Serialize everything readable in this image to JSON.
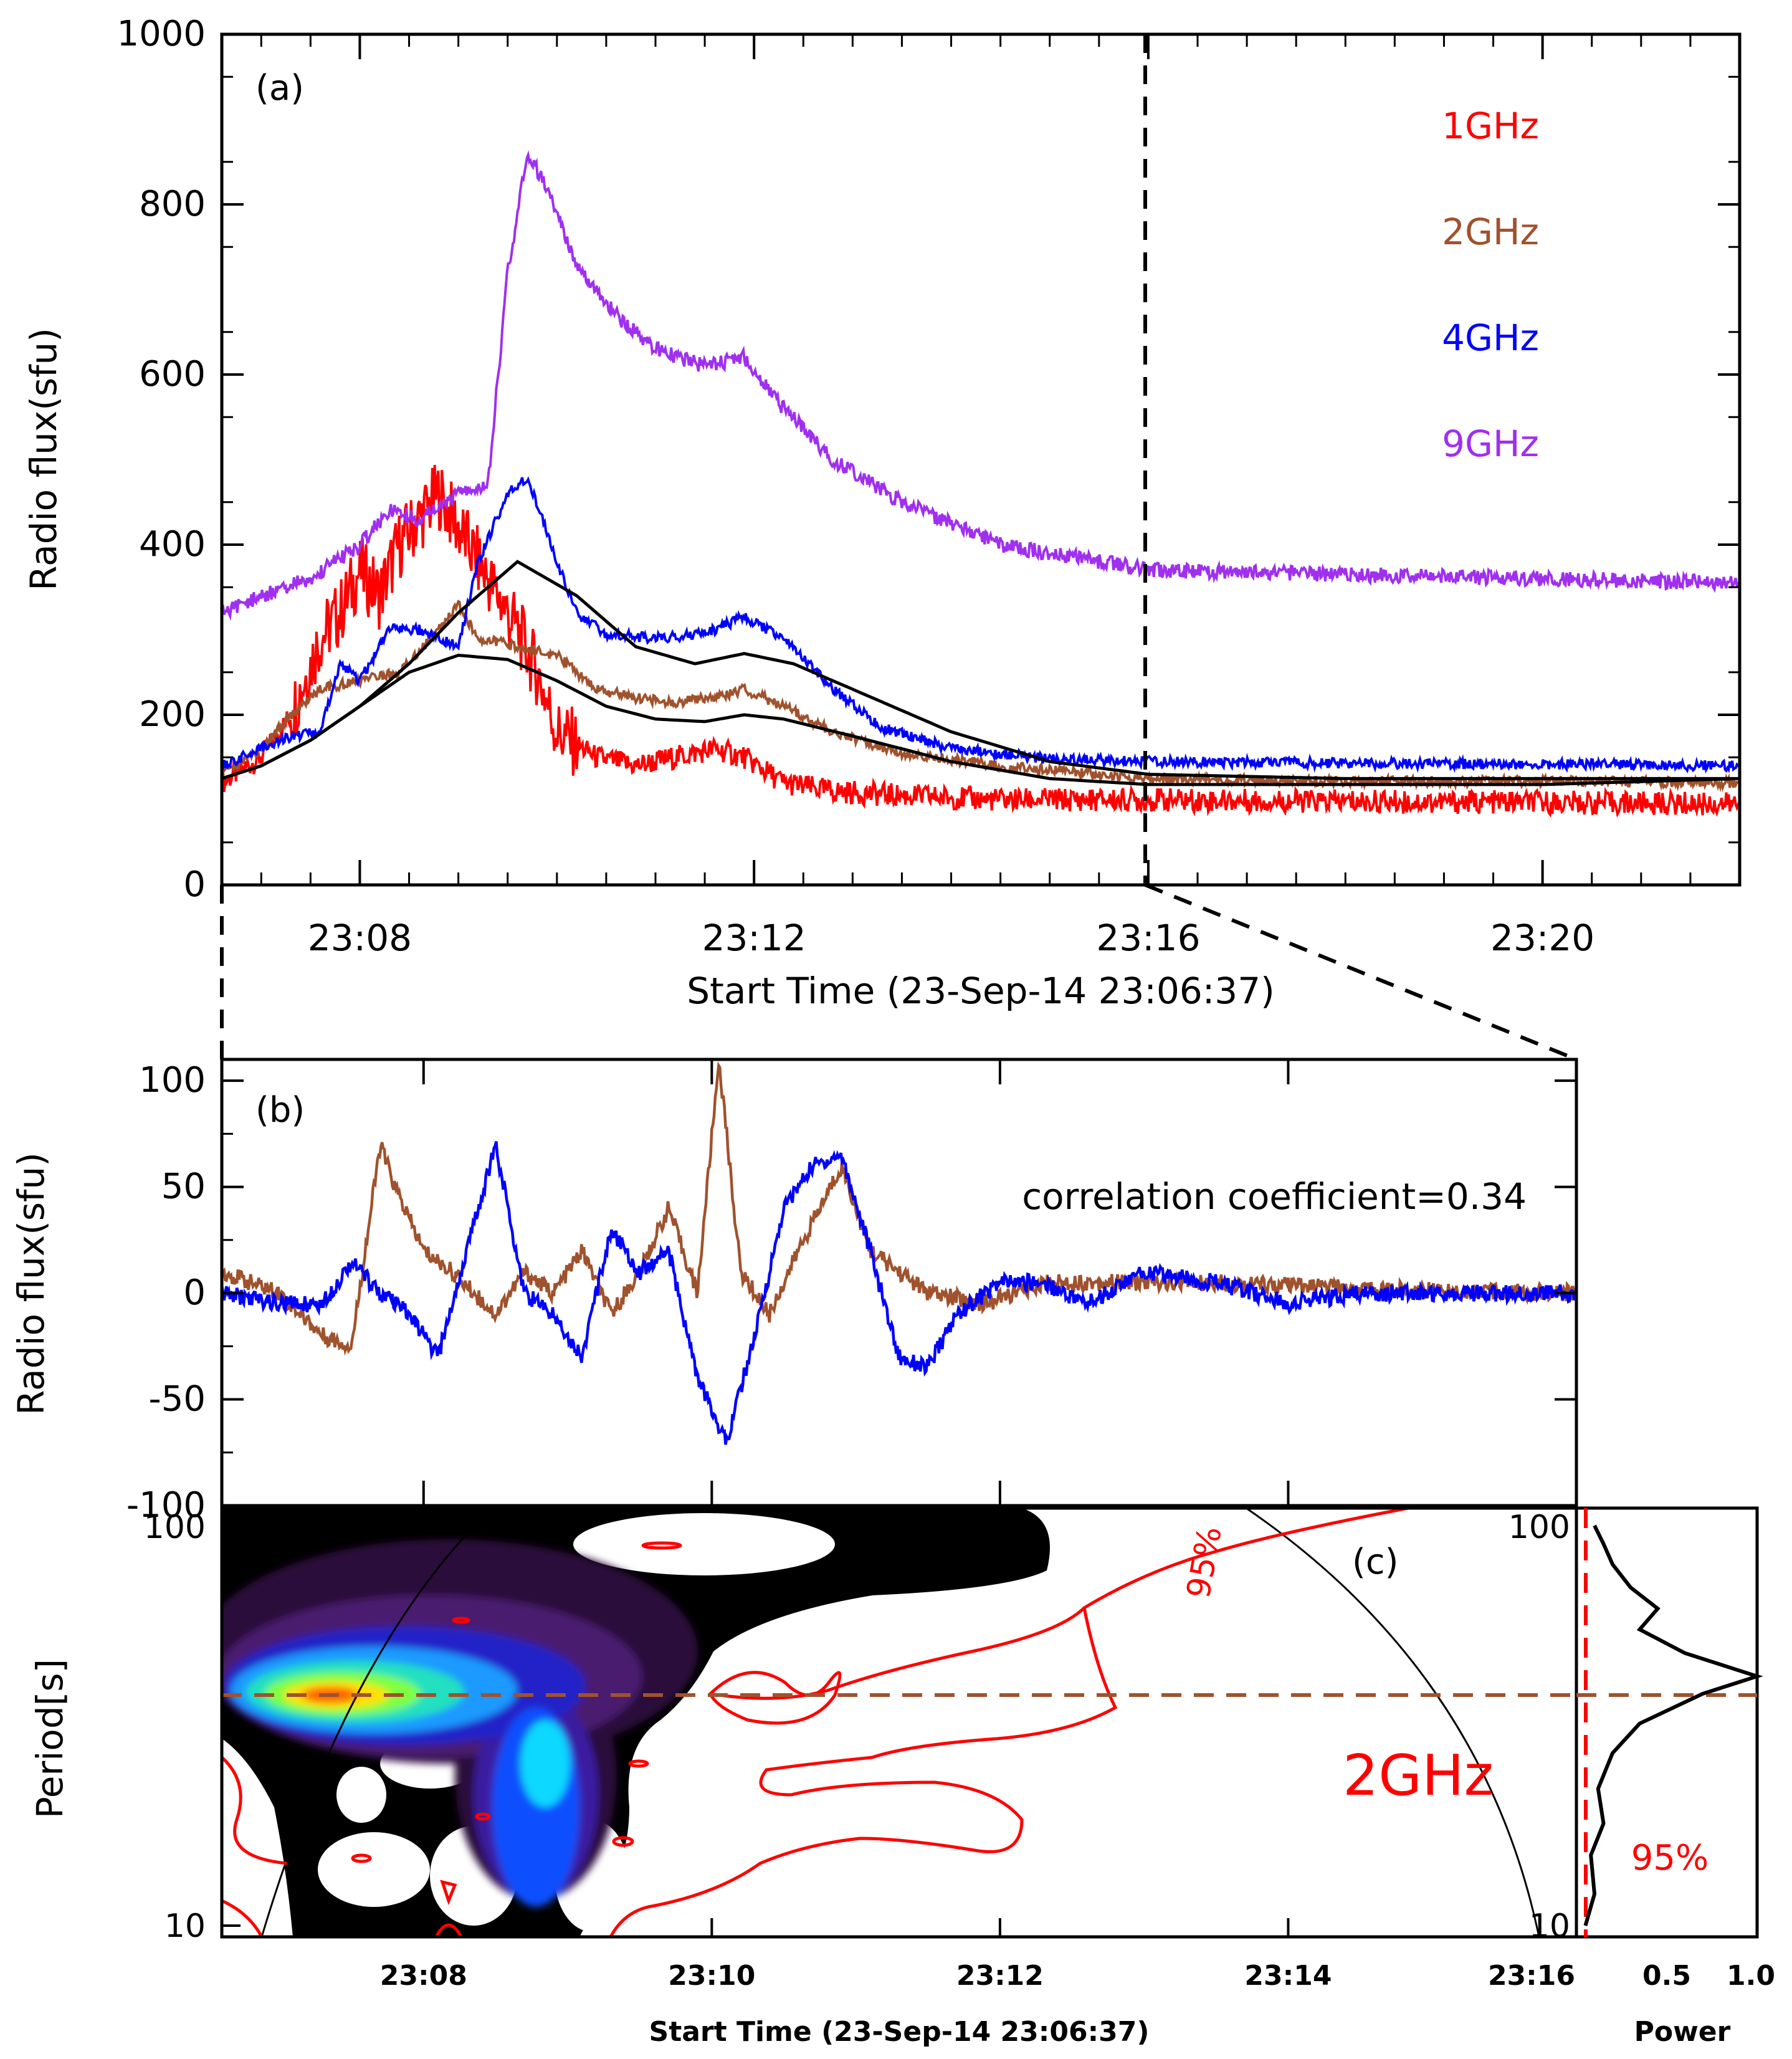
{
  "chart_data": [
    {
      "panel": "(a)",
      "type": "line",
      "title": "",
      "xlabel": "Start Time (23-Sep-14 23:06:37)",
      "ylabel": "Radio flux(sfu)",
      "xlim_minutes_after_2306": [
        0.6,
        16.0
      ],
      "ylim": [
        0,
        1000
      ],
      "yticks": [
        0,
        200,
        400,
        600,
        800,
        1000
      ],
      "xtick_labels": [
        "23:08",
        "23:12",
        "23:16",
        "23:20"
      ],
      "xtick_minutes": [
        2,
        6,
        10,
        14
      ],
      "marker_line_label": "23:16",
      "legend_placement": "top-right",
      "series": [
        {
          "name": "1GHz",
          "color": "#ff0000",
          "x": [
            0.6,
            1.0,
            1.3,
            1.6,
            1.8,
            2.0,
            2.2,
            2.4,
            2.6,
            2.8,
            3.0,
            3.2,
            3.4,
            3.6,
            3.8,
            4.0,
            4.4,
            4.8,
            5.2,
            5.6,
            5.9,
            6.3,
            6.8,
            7.5,
            8.5,
            10,
            12,
            14,
            16
          ],
          "values": [
            120,
            150,
            200,
            290,
            320,
            370,
            340,
            400,
            430,
            460,
            420,
            380,
            340,
            300,
            250,
            180,
            150,
            140,
            150,
            160,
            150,
            120,
            110,
            105,
            100,
            100,
            98,
            97,
            95
          ]
        },
        {
          "name": "2GHz",
          "color": "#a0522d",
          "x": [
            0.6,
            1.0,
            1.3,
            1.6,
            2.0,
            2.4,
            2.8,
            3.0,
            3.2,
            3.6,
            4.0,
            4.4,
            4.8,
            5.2,
            5.6,
            5.9,
            6.3,
            6.8,
            7.5,
            8.5,
            10,
            12,
            14,
            16
          ],
          "values": [
            130,
            160,
            200,
            230,
            240,
            250,
            300,
            330,
            290,
            280,
            270,
            230,
            220,
            215,
            220,
            230,
            210,
            180,
            155,
            140,
            125,
            122,
            122,
            120
          ]
        },
        {
          "name": "4GHz",
          "color": "#0000ff",
          "x": [
            0.6,
            1.0,
            1.3,
            1.6,
            1.8,
            2.0,
            2.3,
            2.6,
            3.0,
            3.2,
            3.5,
            3.7,
            4.0,
            4.2,
            4.5,
            5.0,
            5.5,
            5.9,
            6.3,
            6.8,
            7.3,
            8.0,
            9.0,
            10,
            12,
            14,
            16
          ],
          "values": [
            140,
            160,
            175,
            180,
            260,
            240,
            300,
            300,
            280,
            380,
            460,
            480,
            380,
            320,
            295,
            290,
            295,
            315,
            290,
            230,
            185,
            160,
            148,
            145,
            143,
            142,
            140
          ]
        },
        {
          "name": "9GHz",
          "color": "#a02ff0",
          "x": [
            0.6,
            1.0,
            1.5,
            2.0,
            2.3,
            2.6,
            3.0,
            3.3,
            3.5,
            3.7,
            3.9,
            4.2,
            4.6,
            5.0,
            5.5,
            5.9,
            6.3,
            6.8,
            7.5,
            8.5,
            9.5,
            10,
            12,
            14,
            16
          ],
          "values": [
            320,
            340,
            360,
            400,
            440,
            430,
            460,
            470,
            720,
            860,
            820,
            730,
            670,
            630,
            610,
            620,
            560,
            500,
            450,
            400,
            380,
            370,
            365,
            360,
            355
          ]
        },
        {
          "name": "smooth-1",
          "color": "#000000",
          "x": [
            0.6,
            1.0,
            1.5,
            2.0,
            2.5,
            3.0,
            3.6,
            4.2,
            4.8,
            5.4,
            5.9,
            6.4,
            7.0,
            8.0,
            9.0,
            10,
            12,
            14,
            16
          ],
          "values": [
            125,
            140,
            170,
            210,
            260,
            320,
            380,
            340,
            280,
            260,
            272,
            260,
            230,
            180,
            145,
            130,
            125,
            125,
            125
          ]
        },
        {
          "name": "smooth-2",
          "color": "#000000",
          "x": [
            0.6,
            1.0,
            1.5,
            2.0,
            2.5,
            3.0,
            3.5,
            4.0,
            4.5,
            5.0,
            5.5,
            5.9,
            6.3,
            7.0,
            8.0,
            9.0,
            10,
            12,
            14,
            16
          ],
          "values": [
            125,
            140,
            170,
            210,
            250,
            270,
            265,
            240,
            210,
            195,
            192,
            200,
            195,
            175,
            145,
            125,
            118,
            118,
            118,
            125
          ]
        }
      ],
      "annotations": [
        "(a)"
      ]
    },
    {
      "panel": "(b)",
      "type": "line",
      "ylabel": "Radio flux(sfu)",
      "ylim": [
        -100,
        110
      ],
      "yticks": [
        -100,
        -50,
        0,
        50,
        100
      ],
      "annotation_text": "correlation coefficient=0.34",
      "annotations": [
        "(b)"
      ],
      "series": [
        {
          "name": "2GHz detrended",
          "color": "#a0522d",
          "x": [
            0.6,
            1.0,
            1.3,
            1.5,
            1.7,
            1.8,
            2.0,
            2.2,
            2.5,
            2.7,
            2.9,
            3.1,
            3.3,
            3.5,
            3.7,
            3.9,
            4.05,
            4.2,
            4.4,
            4.6,
            4.9,
            5.1,
            5.5,
            5.9,
            6.3,
            6.8,
            7.5,
            8.5,
            10
          ],
          "values": [
            10,
            0,
            -20,
            -25,
            70,
            50,
            20,
            10,
            -10,
            10,
            0,
            20,
            -10,
            10,
            40,
            0,
            110,
            10,
            -10,
            20,
            60,
            20,
            0,
            -5,
            5,
            5,
            5,
            2,
            0
          ]
        },
        {
          "name": "4GHz detrended",
          "color": "#0000ff",
          "x": [
            0.6,
            1.0,
            1.3,
            1.5,
            1.7,
            1.9,
            2.1,
            2.3,
            2.5,
            2.7,
            2.9,
            3.1,
            3.3,
            3.5,
            3.7,
            3.9,
            4.1,
            4.3,
            4.5,
            4.7,
            4.9,
            5.1,
            5.3,
            5.5,
            5.7,
            6.0,
            6.3,
            6.6,
            7.0,
            7.5,
            8.0,
            8.5,
            9.0,
            10
          ],
          "values": [
            0,
            -5,
            -5,
            15,
            0,
            -10,
            -30,
            20,
            70,
            0,
            -10,
            -30,
            30,
            10,
            20,
            -40,
            -70,
            -20,
            40,
            60,
            65,
            20,
            -30,
            -35,
            -10,
            5,
            5,
            -5,
            10,
            5,
            -5,
            0,
            0,
            0
          ]
        }
      ]
    },
    {
      "panel": "(c)",
      "type": "heatmap",
      "title": "2GHz",
      "xlabel": "Start Time (23-Sep-14 23:06:37)",
      "ylabel": "Period[s]",
      "y_scale": "log",
      "ylim": [
        10,
        100
      ],
      "yticks": [
        10,
        100
      ],
      "xtick_labels": [
        "23:08",
        "23:10",
        "23:12",
        "23:14",
        "23:16"
      ],
      "xtick_minutes": [
        2,
        4,
        6,
        8,
        10
      ],
      "significance_label": "95%",
      "peak_period_s": 42,
      "annotations": [
        "(c)"
      ],
      "peak_blob_center_minute": 1.6
    },
    {
      "panel": "global-power",
      "type": "line",
      "xlabel": "Power",
      "xticks": [
        "0.5",
        "1.0"
      ],
      "ytick_labels": [
        "10",
        "100"
      ],
      "significance_label": "95%",
      "period_s": [
        10,
        12,
        15,
        18,
        22,
        27,
        32,
        38,
        42,
        48,
        55,
        62,
        70,
        80,
        90,
        100
      ],
      "power": [
        0.05,
        0.1,
        0.08,
        0.15,
        0.12,
        0.2,
        0.35,
        0.7,
        1.0,
        0.6,
        0.35,
        0.45,
        0.3,
        0.2,
        0.15,
        0.1
      ]
    }
  ]
}
